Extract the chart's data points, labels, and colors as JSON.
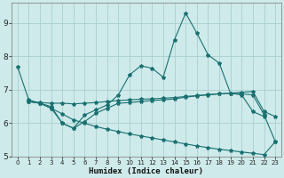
{
  "title": "",
  "xlabel": "Humidex (Indice chaleur)",
  "ylabel": "",
  "bg_color": "#ceeaea",
  "line_color": "#1a7070",
  "grid_color": "#aacfcf",
  "xlim": [
    -0.5,
    23.5
  ],
  "ylim": [
    5.0,
    9.6
  ],
  "yticks": [
    5,
    6,
    7,
    8,
    9
  ],
  "xticks": [
    0,
    1,
    2,
    3,
    4,
    5,
    6,
    7,
    8,
    9,
    10,
    11,
    12,
    13,
    14,
    15,
    16,
    17,
    18,
    19,
    20,
    21,
    22,
    23
  ],
  "series": [
    {
      "x": [
        0,
        1,
        2,
        3,
        4,
        5,
        6,
        7,
        8,
        9,
        10,
        11,
        12,
        13,
        14,
        15,
        16,
        17,
        18,
        19,
        20,
        21,
        22
      ],
      "y": [
        7.7,
        6.7,
        6.6,
        6.5,
        6.0,
        5.85,
        6.25,
        6.4,
        6.55,
        6.85,
        7.45,
        7.72,
        7.65,
        7.38,
        8.5,
        9.3,
        8.7,
        8.05,
        7.8,
        6.9,
        6.85,
        6.35,
        6.2
      ]
    },
    {
      "x": [
        1,
        2,
        3,
        4,
        5,
        6,
        7,
        8,
        9,
        10,
        11,
        12,
        13,
        14,
        15,
        16,
        17,
        18,
        19,
        20,
        21,
        22,
        23
      ],
      "y": [
        6.65,
        6.6,
        6.45,
        6.28,
        6.1,
        6.0,
        5.9,
        5.82,
        5.75,
        5.68,
        5.62,
        5.56,
        5.5,
        5.44,
        5.38,
        5.32,
        5.27,
        5.22,
        5.18,
        5.14,
        5.1,
        5.06,
        5.45
      ]
    },
    {
      "x": [
        1,
        2,
        3,
        4,
        5,
        6,
        7,
        8,
        9,
        10,
        11,
        12,
        13,
        14,
        15,
        16,
        17,
        18,
        19,
        20,
        21,
        22,
        23
      ],
      "y": [
        6.65,
        6.62,
        6.6,
        6.6,
        6.58,
        6.6,
        6.62,
        6.65,
        6.68,
        6.7,
        6.72,
        6.73,
        6.75,
        6.77,
        6.8,
        6.83,
        6.86,
        6.88,
        6.9,
        6.93,
        6.95,
        6.35,
        6.2
      ]
    },
    {
      "x": [
        1,
        2,
        3,
        4,
        5,
        6,
        7,
        8,
        9,
        10,
        11,
        12,
        13,
        14,
        15,
        16,
        17,
        18,
        19,
        20,
        21,
        22,
        23
      ],
      "y": [
        6.65,
        6.6,
        6.45,
        6.0,
        5.85,
        6.05,
        6.3,
        6.45,
        6.6,
        6.62,
        6.65,
        6.68,
        6.7,
        6.73,
        6.78,
        6.82,
        6.85,
        6.88,
        6.9,
        6.88,
        6.85,
        6.25,
        5.45
      ]
    }
  ]
}
